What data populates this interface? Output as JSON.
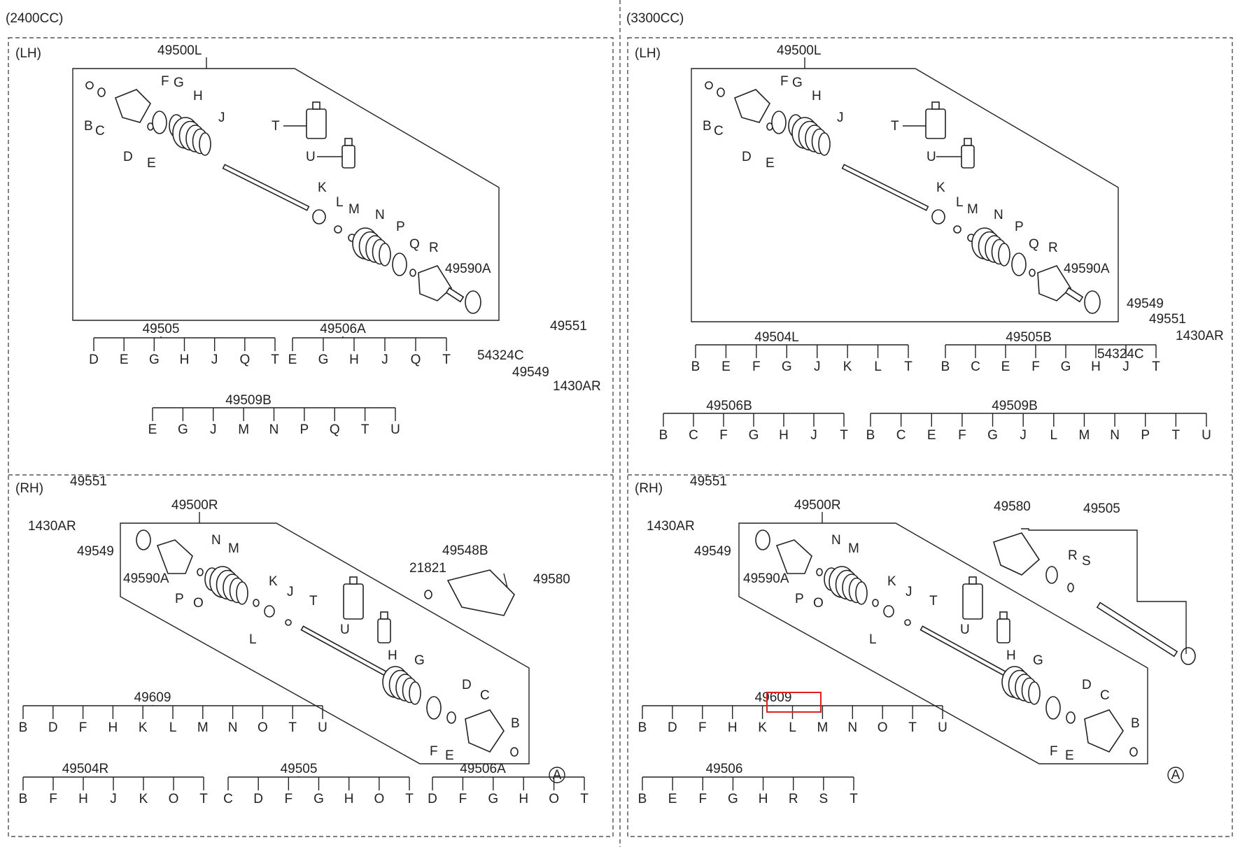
{
  "sections": {
    "left_title": "(2400CC)",
    "right_title": "(3300CC)",
    "lh": "(LH)",
    "rh": "(RH)"
  },
  "q1": {
    "assy": "49500L",
    "callouts": [
      "B",
      "C",
      "D",
      "E",
      "F",
      "G",
      "H",
      "J",
      "T",
      "U",
      "K",
      "L",
      "M",
      "N",
      "P",
      "Q",
      "R",
      "49590A",
      "54324C",
      "49549",
      "49551",
      "1430AR"
    ],
    "kits": [
      {
        "label": "49505",
        "items": [
          "D",
          "E",
          "G",
          "H",
          "J",
          "Q",
          "T"
        ]
      },
      {
        "label": "49506A",
        "items": [
          "E",
          "G",
          "H",
          "J",
          "Q",
          "T"
        ]
      },
      {
        "label": "49509B",
        "items": [
          "E",
          "G",
          "J",
          "M",
          "N",
          "P",
          "Q",
          "T",
          "U"
        ]
      }
    ]
  },
  "q2": {
    "assy": "49500L",
    "callouts": [
      "B",
      "C",
      "D",
      "E",
      "F",
      "G",
      "H",
      "J",
      "T",
      "U",
      "K",
      "L",
      "M",
      "N",
      "P",
      "Q",
      "R",
      "49590A",
      "54324C",
      "49549",
      "49551",
      "1430AR"
    ],
    "kits": [
      {
        "label": "49504L",
        "items": [
          "B",
          "E",
          "F",
          "G",
          "J",
          "K",
          "L",
          "T"
        ]
      },
      {
        "label": "49505B",
        "items": [
          "B",
          "C",
          "E",
          "F",
          "G",
          "H",
          "J",
          "T"
        ]
      },
      {
        "label": "49506B",
        "items": [
          "B",
          "C",
          "F",
          "G",
          "H",
          "J",
          "T"
        ]
      },
      {
        "label": "49509B",
        "items": [
          "B",
          "C",
          "E",
          "F",
          "G",
          "J",
          "L",
          "M",
          "N",
          "P",
          "T",
          "U"
        ]
      }
    ]
  },
  "q3": {
    "assy": "49500R",
    "callouts": [
      "49551",
      "1430AR",
      "49549",
      "49590A",
      "P",
      "O",
      "N",
      "M",
      "L",
      "K",
      "J",
      "T",
      "U",
      "21821",
      "49548B",
      "49580",
      "H",
      "G",
      "D",
      "C",
      "F",
      "E",
      "B",
      "A"
    ],
    "kits": [
      {
        "label": "49609",
        "items": [
          "B",
          "D",
          "F",
          "H",
          "K",
          "L",
          "M",
          "N",
          "O",
          "T",
          "U"
        ]
      },
      {
        "label": "49504R",
        "items": [
          "B",
          "F",
          "H",
          "J",
          "K",
          "O",
          "T"
        ]
      },
      {
        "label": "49505",
        "items": [
          "C",
          "D",
          "F",
          "G",
          "H",
          "O",
          "T"
        ]
      },
      {
        "label": "49506A",
        "items": [
          "D",
          "F",
          "G",
          "H",
          "O",
          "T"
        ]
      }
    ]
  },
  "q4": {
    "assy": "49500R",
    "callouts": [
      "49551",
      "1430AR",
      "49549",
      "49590A",
      "P",
      "O",
      "N",
      "M",
      "L",
      "K",
      "J",
      "T",
      "U",
      "H",
      "G",
      "D",
      "C",
      "F",
      "E",
      "B",
      "A",
      "49580",
      "49505",
      "R",
      "S"
    ],
    "kits": [
      {
        "label": "49609",
        "items": [
          "B",
          "D",
          "F",
          "H",
          "K",
          "L",
          "M",
          "N",
          "O",
          "T",
          "U"
        ]
      },
      {
        "label": "49506",
        "items": [
          "B",
          "E",
          "F",
          "G",
          "H",
          "R",
          "S",
          "T"
        ]
      }
    ]
  },
  "colors": {
    "line": "#222222",
    "highlight": "#dd2222"
  }
}
